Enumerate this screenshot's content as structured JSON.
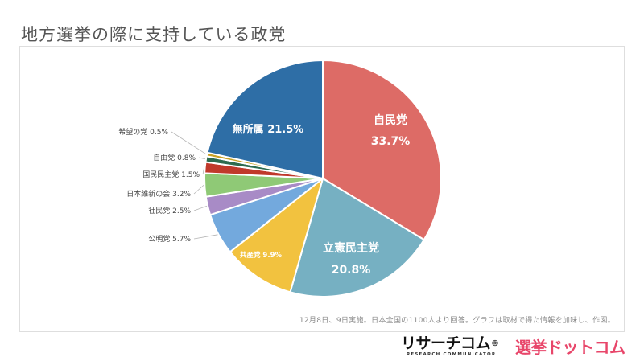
{
  "title": "地方選挙の際に支持している政党",
  "note": "12月8日、9日実施。日本全国の1100人より回答。グラフは取材で得た情報を加味し、作図。",
  "logos": {
    "research_main": "リサーチコム",
    "research_mark": "®",
    "research_sub": "RESEARCH COMMUNICATOR",
    "senkyo": "選挙ドットコム"
  },
  "chart_data": {
    "type": "pie",
    "title": "地方選挙の際に支持している政党",
    "start": "12 o'clock",
    "direction": "clockwise",
    "slices": [
      {
        "name": "自民党",
        "label": "自民党",
        "value_label": "33.7%",
        "value": 33.7,
        "color": "#dd6b66",
        "label_position": "inside"
      },
      {
        "name": "立憲民主党",
        "label": "立憲民主党",
        "value_label": "20.8%",
        "value": 20.8,
        "color": "#76b0c2",
        "label_position": "inside"
      },
      {
        "name": "共産党",
        "label": "共産党 9.9%",
        "value": 9.9,
        "color": "#f2c23f",
        "label_position": "inside"
      },
      {
        "name": "公明党",
        "label": "公明党 5.7%",
        "value": 5.7,
        "color": "#73a9dd",
        "label_position": "outside"
      },
      {
        "name": "社民党",
        "label": "社民党 2.5%",
        "value": 2.5,
        "color": "#a88bc6",
        "label_position": "outside"
      },
      {
        "name": "日本維新の会",
        "label": "日本維新の会 3.2%",
        "value": 3.2,
        "color": "#8fc976",
        "label_position": "outside"
      },
      {
        "name": "国民民主党",
        "label": "国民民主党 1.5%",
        "value": 1.5,
        "color": "#c0392b",
        "label_position": "outside"
      },
      {
        "name": "自由党",
        "label": "自由党 0.8%",
        "value": 0.8,
        "color": "#2d6b4f",
        "label_position": "outside"
      },
      {
        "name": "希望の党",
        "label": "希望の党 0.5%",
        "value": 0.5,
        "color": "#c9a227",
        "label_position": "outside"
      },
      {
        "name": "無所属",
        "label": "無所属 21.5%",
        "value": 21.5,
        "color": "#2e6ea6",
        "label_position": "inside"
      }
    ]
  }
}
